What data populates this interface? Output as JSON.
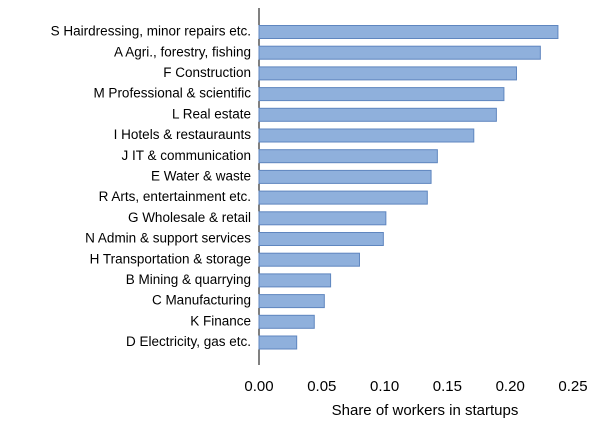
{
  "chart_data": {
    "type": "barh",
    "xlabel": "Share of workers in startups",
    "categories": [
      "S Hairdressing, minor repairs etc.",
      "A Agri., forestry, fishing",
      "F Construction",
      "M Professional & scientific",
      "L Real estate",
      "I Hotels & restauraunts",
      "J IT & communication",
      "E Water & waste",
      "R Arts, entertainment etc.",
      "G Wholesale & retail",
      "N Admin & support services",
      "H Transportation & storage",
      "B Mining & quarrying",
      "C Manufacturing",
      "K Finance",
      "D Electricity, gas etc."
    ],
    "values": [
      0.238,
      0.224,
      0.205,
      0.195,
      0.189,
      0.171,
      0.142,
      0.137,
      0.134,
      0.101,
      0.099,
      0.08,
      0.057,
      0.052,
      0.044,
      0.03
    ],
    "color": "#8fb0dc",
    "xlim": [
      0,
      0.25
    ],
    "xticks": [
      {
        "value": 0,
        "label": "0.00"
      },
      0.05,
      {
        "value": 0.1,
        "label": "0.10"
      },
      0.15,
      {
        "value": 0.2,
        "label": "0.20"
      },
      0.25
    ],
    "grid": false
  }
}
